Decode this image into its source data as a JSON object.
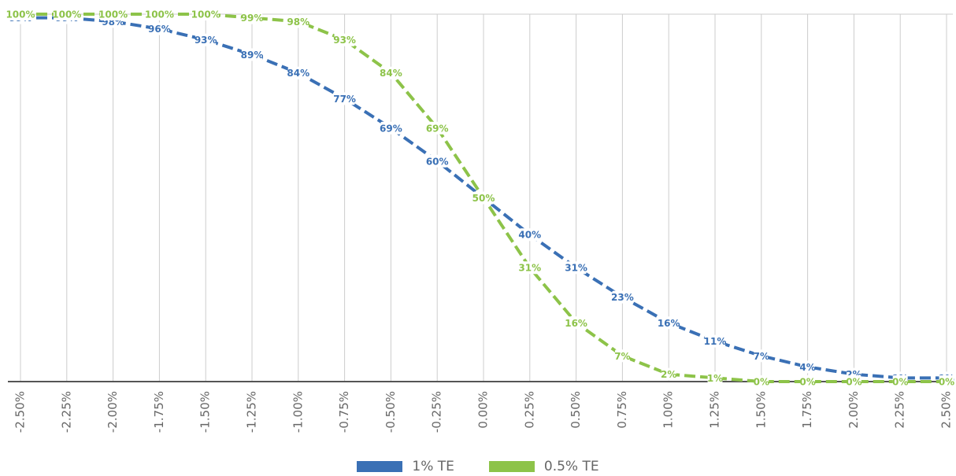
{
  "chart_data": {
    "type": "line",
    "title": "",
    "xlabel": "",
    "ylabel": "",
    "x": [
      -2.5,
      -2.25,
      -2.0,
      -1.75,
      -1.5,
      -1.25,
      -1.0,
      -0.75,
      -0.5,
      -0.25,
      0.0,
      0.25,
      0.5,
      0.75,
      1.0,
      1.25,
      1.5,
      1.75,
      2.0,
      2.25,
      2.5
    ],
    "x_tick_labels": [
      "-2.50%",
      "-2.25%",
      "-2.00%",
      "-1.75%",
      "-1.50%",
      "-1.25%",
      "-1.00%",
      "-0.75%",
      "-0.50%",
      "-0.25%",
      "0.00%",
      "0.25%",
      "0.50%",
      "0.75%",
      "1.00%",
      "1.25%",
      "1.50%",
      "1.75%",
      "2.00%",
      "2.25%",
      "2.50%"
    ],
    "ylim": [
      0,
      100
    ],
    "grid": "vertical",
    "legend_position": "bottom-center",
    "series": [
      {
        "name": "1% TE",
        "color": "#3a70b5",
        "values": [
          99,
          99,
          98,
          96,
          93,
          89,
          84,
          77,
          69,
          60,
          50,
          40,
          31,
          23,
          16,
          11,
          7,
          4,
          2,
          1,
          1
        ],
        "labels": [
          "99%",
          "99%",
          "98%",
          "96%",
          "93%",
          "89%",
          "84%",
          "77%",
          "69%",
          "60%",
          "50%",
          "40%",
          "31%",
          "23%",
          "16%",
          "11%",
          "7%",
          "4%",
          "2%",
          "1%",
          "1%"
        ]
      },
      {
        "name": "0.5% TE",
        "color": "#8dc349",
        "values": [
          100,
          100,
          100,
          100,
          100,
          99,
          98,
          93,
          84,
          69,
          50,
          31,
          16,
          7,
          2,
          1,
          0,
          0,
          0,
          0,
          0
        ],
        "labels": [
          "100%",
          "100%",
          "100%",
          "100%",
          "100%",
          "99%",
          "98%",
          "93%",
          "84%",
          "69%",
          "50%",
          "31%",
          "16%",
          "7%",
          "2%",
          "1%",
          "0%",
          "0%",
          "0%",
          "0%",
          "0%"
        ]
      }
    ]
  }
}
